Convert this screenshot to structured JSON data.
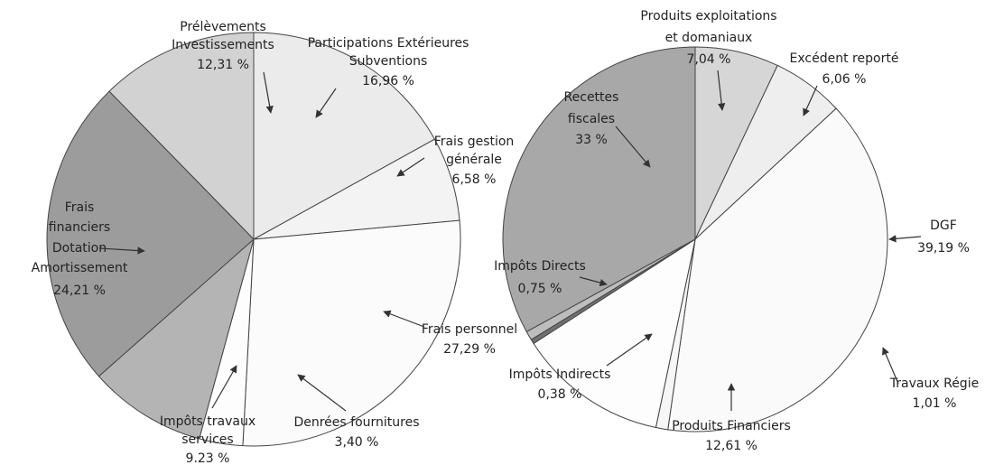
{
  "chart_data": [
    {
      "type": "pie",
      "categories": [
        [
          "Prélèvements",
          "Investissements"
        ],
        [
          "Participations Extérieures",
          "Subventions"
        ],
        [
          "Frais gestion",
          "générale"
        ],
        [
          "Frais personnel"
        ],
        [
          "Denrées fournitures"
        ],
        [
          "Impôts travaux",
          "services"
        ],
        [
          "Frais",
          "financiers",
          "Dotation",
          "Amortissement"
        ]
      ],
      "values": [
        12.31,
        16.96,
        6.58,
        27.29,
        3.4,
        9.23,
        24.21
      ],
      "value_labels": [
        "12,31 %",
        "16,96 %",
        "6,58 %",
        "27,29 %",
        "3,40 %",
        "9.23 %",
        "24,21 %"
      ],
      "colors": [
        "#d2d2d2",
        "#ebebeb",
        "#f3f3f3",
        "#fbfbfb",
        "#fdfdfd",
        "#b4b4b4",
        "#9c9c9c"
      ]
    },
    {
      "type": "pie",
      "categories": [
        [
          "Recettes",
          "fiscales"
        ],
        [
          "Produits exploitations",
          "et domaniaux"
        ],
        [
          "Excédent reporté"
        ],
        [
          "DGF"
        ],
        [
          "Travaux Régie"
        ],
        [
          "Produits Financiers"
        ],
        [
          "Impôts Indirects"
        ],
        [
          "Impôts Directs"
        ]
      ],
      "values": [
        33,
        7.04,
        6.06,
        39.19,
        1.01,
        12.61,
        0.38,
        0.75
      ],
      "value_labels": [
        "33 %",
        "7,04 %",
        "6,06 %",
        "39,19 %",
        "1,01 %",
        "12,61 %",
        "0,38 %",
        "0,75 %"
      ],
      "colors": [
        "#a8a8a8",
        "#d6d6d6",
        "#eeeeee",
        "#fafafa",
        "#f6f6f6",
        "#fdfdfd",
        "#707070",
        "#bdbdbd"
      ]
    }
  ]
}
